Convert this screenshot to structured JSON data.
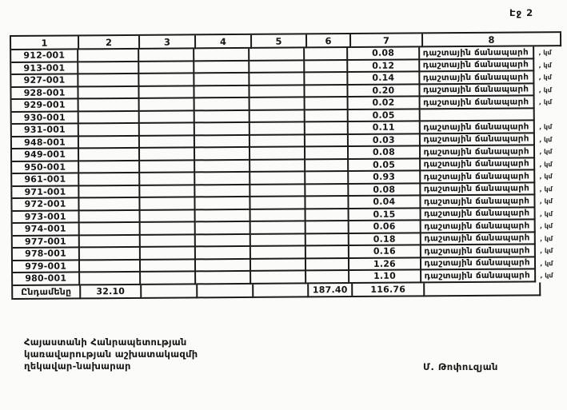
{
  "page": {
    "label": "Էջ 2"
  },
  "table": {
    "columns": [
      "1",
      "2",
      "3",
      "4",
      "5",
      "6",
      "7",
      "8"
    ],
    "rows": [
      {
        "code": "912-001",
        "value": "0.08",
        "description": "դաշտային ճանապարհ",
        "unit": ", կմ"
      },
      {
        "code": "913-001",
        "value": "0.12",
        "description": "դաշտային ճանապարհ",
        "unit": ", կմ"
      },
      {
        "code": "927-001",
        "value": "0.14",
        "description": "դաշտային ճանապարհ",
        "unit": ", կմ"
      },
      {
        "code": "928-001",
        "value": "0.20",
        "description": "դաշտային ճանապարհ",
        "unit": ", կմ"
      },
      {
        "code": "929-001",
        "value": "0.02",
        "description": "դաշտային ճանապարհ",
        "unit": ", կմ"
      },
      {
        "code": "930-001",
        "value": "0.05",
        "description": "",
        "unit": ""
      },
      {
        "code": "931-001",
        "value": "0.11",
        "description": "դաշտային ճանապարհ",
        "unit": ", կմ"
      },
      {
        "code": "948-001",
        "value": "0.03",
        "description": "դաշտային ճանապարհ",
        "unit": ", կմ"
      },
      {
        "code": "949-001",
        "value": "0.08",
        "description": "դաշտային ճանապարհ",
        "unit": ", կմ"
      },
      {
        "code": "950-001",
        "value": "0.05",
        "description": "դաշտային ճանապարհ",
        "unit": ", կմ"
      },
      {
        "code": "961-001",
        "value": "0.93",
        "description": "դաշտային ճանապարհ",
        "unit": ", կմ"
      },
      {
        "code": "971-001",
        "value": "0.08",
        "description": "դաշտային ճանապարհ",
        "unit": ", կմ"
      },
      {
        "code": "972-001",
        "value": "0.04",
        "description": "դաշտային ճանապարհ",
        "unit": ", կմ"
      },
      {
        "code": "973-001",
        "value": "0.15",
        "description": "դաշտային ճանապարհ",
        "unit": ", կմ"
      },
      {
        "code": "974-001",
        "value": "0.06",
        "description": "դաշտային ճանապարհ",
        "unit": ", կմ"
      },
      {
        "code": "977-001",
        "value": "0.18",
        "description": "դաշտային ճանապարհ",
        "unit": ", կմ"
      },
      {
        "code": "978-001",
        "value": "0.16",
        "description": "դաշտային ճանապարհ",
        "unit": ", կմ"
      },
      {
        "code": "979-001",
        "value": "1.26",
        "description": "դաշտային ճանապարհ",
        "unit": ", կմ"
      },
      {
        "code": "980-001",
        "value": "1.10",
        "description": "դաշտային ճանապարհ",
        "unit": ", կմ"
      }
    ],
    "total": {
      "label": "Ընդամենը",
      "col2": "32.10",
      "col6": "187.40",
      "col7": "116.76"
    }
  },
  "footer": {
    "org_lines": [
      "Հայաստանի Հանրապետության",
      "կառավարության աշխատակազմի",
      "ղեկավար-նախարար"
    ],
    "signature": "Մ. Թոփուզյան"
  }
}
